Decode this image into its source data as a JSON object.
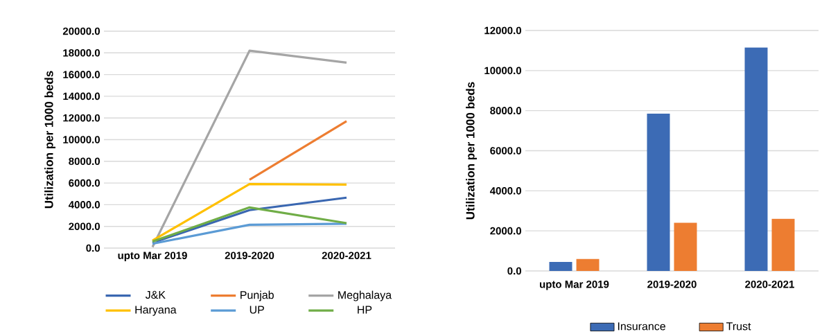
{
  "chart_data": [
    {
      "type": "line",
      "ylabel": "Utilization per 1000 beds",
      "categories": [
        "upto Mar 2019",
        "2019-2020",
        "2020-2021"
      ],
      "series": [
        {
          "name": "J&K",
          "color": "#3a67b1",
          "values": [
            500,
            3500,
            4650
          ]
        },
        {
          "name": "Punjab",
          "color": "#ed7d31",
          "values": [
            null,
            6300,
            11700
          ]
        },
        {
          "name": "Meghalaya",
          "color": "#a5a5a5",
          "values": [
            100,
            18200,
            17100
          ]
        },
        {
          "name": "Haryana",
          "color": "#ffc000",
          "values": [
            700,
            5900,
            5850
          ]
        },
        {
          "name": "UP",
          "color": "#5b9bd5",
          "values": [
            400,
            2150,
            2250
          ]
        },
        {
          "name": "HP",
          "color": "#70ad47",
          "values": [
            600,
            3750,
            2300
          ]
        }
      ],
      "ylim": [
        0,
        20000
      ],
      "yticks": [
        {
          "value": 0,
          "label": "0.0"
        },
        {
          "value": 2000,
          "label": "2000.0"
        },
        {
          "value": 4000,
          "label": "4000.0"
        },
        {
          "value": 6000,
          "label": "6000.0"
        },
        {
          "value": 8000,
          "label": "8000.0"
        },
        {
          "value": 10000,
          "label": "10000.0"
        },
        {
          "value": 12000,
          "label": "12000.0"
        },
        {
          "value": 14000,
          "label": "14000.0"
        },
        {
          "value": 16000,
          "label": "16000.0"
        },
        {
          "value": 18000,
          "label": "18000.0"
        },
        {
          "value": 20000,
          "label": "20000.0"
        }
      ],
      "grid": "y",
      "legend": "bottom"
    },
    {
      "type": "bar",
      "ylabel": "Utilization per 1000 beds",
      "categories": [
        "upto Mar 2019",
        "2019-2020",
        "2020-2021"
      ],
      "series": [
        {
          "name": "Insurance",
          "color": "#3c6bb5",
          "values": [
            450,
            7850,
            11150
          ]
        },
        {
          "name": "Trust",
          "color": "#ed7d31",
          "values": [
            600,
            2400,
            2600
          ]
        }
      ],
      "ylim": [
        0,
        12000
      ],
      "yticks": [
        {
          "value": 0,
          "label": "0.0"
        },
        {
          "value": 2000,
          "label": "2000.0"
        },
        {
          "value": 4000,
          "label": "4000.0"
        },
        {
          "value": 6000,
          "label": "6000.0"
        },
        {
          "value": 8000,
          "label": "8000.0"
        },
        {
          "value": 10000,
          "label": "10000.0"
        },
        {
          "value": 12000,
          "label": "12000.0"
        }
      ],
      "grid": "y",
      "legend": "bottom"
    }
  ]
}
